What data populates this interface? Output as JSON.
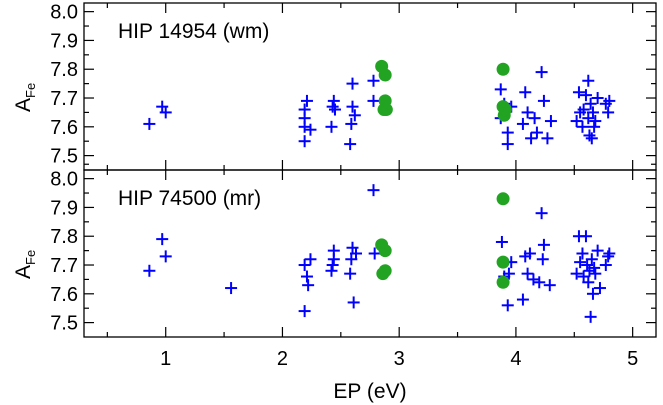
{
  "chart_data": [
    {
      "type": "scatter",
      "label": "HIP 14954 (wm)",
      "ylabel": "A",
      "ylabel_sub": "Fe",
      "xlabel": "",
      "xlim": [
        0.3,
        5.2
      ],
      "ylim": [
        7.45,
        8.03
      ],
      "yticks": [
        "7.5",
        "7.6",
        "7.7",
        "7.8",
        "7.9",
        "8.0"
      ],
      "xticks": [
        "1",
        "2",
        "3",
        "4",
        "5"
      ],
      "grid": false,
      "colors": {
        "cross": "#0000ff",
        "dot": "#22a322"
      },
      "series": [
        {
          "marker": "cross",
          "points": [
            [
              0.86,
              7.61
            ],
            [
              0.97,
              7.67
            ],
            [
              1.0,
              7.65
            ],
            [
              2.19,
              7.55
            ],
            [
              2.19,
              7.6
            ],
            [
              2.19,
              7.63
            ],
            [
              2.19,
              7.66
            ],
            [
              2.21,
              7.69
            ],
            [
              2.24,
              7.59
            ],
            [
              2.42,
              7.6
            ],
            [
              2.43,
              7.67
            ],
            [
              2.44,
              7.69
            ],
            [
              2.45,
              7.66
            ],
            [
              2.58,
              7.54
            ],
            [
              2.59,
              7.61
            ],
            [
              2.6,
              7.67
            ],
            [
              2.6,
              7.75
            ],
            [
              2.62,
              7.64
            ],
            [
              2.78,
              7.69
            ],
            [
              2.78,
              7.76
            ],
            [
              3.87,
              7.63
            ],
            [
              3.87,
              7.73
            ],
            [
              3.9,
              7.68
            ],
            [
              3.93,
              7.54
            ],
            [
              3.93,
              7.58
            ],
            [
              3.96,
              7.67
            ],
            [
              4.06,
              7.61
            ],
            [
              4.08,
              7.72
            ],
            [
              4.1,
              7.65
            ],
            [
              4.13,
              7.56
            ],
            [
              4.16,
              7.63
            ],
            [
              4.18,
              7.58
            ],
            [
              4.22,
              7.79
            ],
            [
              4.24,
              7.69
            ],
            [
              4.27,
              7.56
            ],
            [
              4.3,
              7.62
            ],
            [
              4.52,
              7.62
            ],
            [
              4.54,
              7.72
            ],
            [
              4.55,
              7.65
            ],
            [
              4.57,
              7.6
            ],
            [
              4.58,
              7.66
            ],
            [
              4.6,
              7.71
            ],
            [
              4.62,
              7.76
            ],
            [
              4.62,
              7.63
            ],
            [
              4.63,
              7.57
            ],
            [
              4.64,
              7.68
            ],
            [
              4.65,
              7.56
            ],
            [
              4.66,
              7.65
            ],
            [
              4.67,
              7.6
            ],
            [
              4.68,
              7.62
            ],
            [
              4.7,
              7.7
            ],
            [
              4.77,
              7.68
            ],
            [
              4.79,
              7.65
            ],
            [
              4.8,
              7.69
            ]
          ]
        },
        {
          "marker": "dot",
          "points": [
            [
              2.85,
              7.81
            ],
            [
              2.87,
              7.66
            ],
            [
              2.88,
              7.78
            ],
            [
              2.88,
              7.69
            ],
            [
              2.89,
              7.66
            ],
            [
              3.89,
              7.8
            ],
            [
              3.89,
              7.67
            ],
            [
              3.9,
              7.64
            ],
            [
              3.91,
              7.66
            ]
          ]
        }
      ]
    },
    {
      "type": "scatter",
      "label": "HIP 74500 (mr)",
      "ylabel": "A",
      "ylabel_sub": "Fe",
      "xlabel": "EP (eV)",
      "xlim": [
        0.3,
        5.2
      ],
      "ylim": [
        7.45,
        8.03
      ],
      "yticks": [
        "7.5",
        "7.6",
        "7.7",
        "7.8",
        "7.9",
        "8.0"
      ],
      "xticks": [
        "1",
        "2",
        "3",
        "4",
        "5"
      ],
      "grid": false,
      "colors": {
        "cross": "#0000ff",
        "dot": "#22a322"
      },
      "series": [
        {
          "marker": "cross",
          "points": [
            [
              0.86,
              7.68
            ],
            [
              0.97,
              7.79
            ],
            [
              1.0,
              7.73
            ],
            [
              1.56,
              7.62
            ],
            [
              2.19,
              7.54
            ],
            [
              2.19,
              7.7
            ],
            [
              2.21,
              7.66
            ],
            [
              2.22,
              7.63
            ],
            [
              2.24,
              7.72
            ],
            [
              2.42,
              7.68
            ],
            [
              2.43,
              7.7
            ],
            [
              2.44,
              7.72
            ],
            [
              2.44,
              7.75
            ],
            [
              2.58,
              7.67
            ],
            [
              2.59,
              7.72
            ],
            [
              2.6,
              7.76
            ],
            [
              2.61,
              7.57
            ],
            [
              2.63,
              7.74
            ],
            [
              2.78,
              7.96
            ],
            [
              2.79,
              7.74
            ],
            [
              3.88,
              7.78
            ],
            [
              3.9,
              7.66
            ],
            [
              3.93,
              7.56
            ],
            [
              3.94,
              7.67
            ],
            [
              3.96,
              7.71
            ],
            [
              4.06,
              7.58
            ],
            [
              4.08,
              7.73
            ],
            [
              4.1,
              7.67
            ],
            [
              4.12,
              7.74
            ],
            [
              4.15,
              7.65
            ],
            [
              4.2,
              7.64
            ],
            [
              4.22,
              7.88
            ],
            [
              4.23,
              7.72
            ],
            [
              4.24,
              7.77
            ],
            [
              4.29,
              7.63
            ],
            [
              4.52,
              7.67
            ],
            [
              4.54,
              7.8
            ],
            [
              4.55,
              7.71
            ],
            [
              4.57,
              7.74
            ],
            [
              4.58,
              7.66
            ],
            [
              4.6,
              7.8
            ],
            [
              4.61,
              7.7
            ],
            [
              4.62,
              7.64
            ],
            [
              4.63,
              7.68
            ],
            [
              4.64,
              7.52
            ],
            [
              4.65,
              7.72
            ],
            [
              4.66,
              7.6
            ],
            [
              4.67,
              7.69
            ],
            [
              4.68,
              7.67
            ],
            [
              4.7,
              7.75
            ],
            [
              4.72,
              7.62
            ],
            [
              4.77,
              7.7
            ],
            [
              4.79,
              7.73
            ],
            [
              4.8,
              7.74
            ]
          ]
        },
        {
          "marker": "dot",
          "points": [
            [
              2.85,
              7.77
            ],
            [
              2.86,
              7.67
            ],
            [
              2.88,
              7.75
            ],
            [
              2.88,
              7.68
            ],
            [
              3.89,
              7.93
            ],
            [
              3.89,
              7.71
            ],
            [
              3.89,
              7.64
            ]
          ]
        }
      ]
    }
  ]
}
